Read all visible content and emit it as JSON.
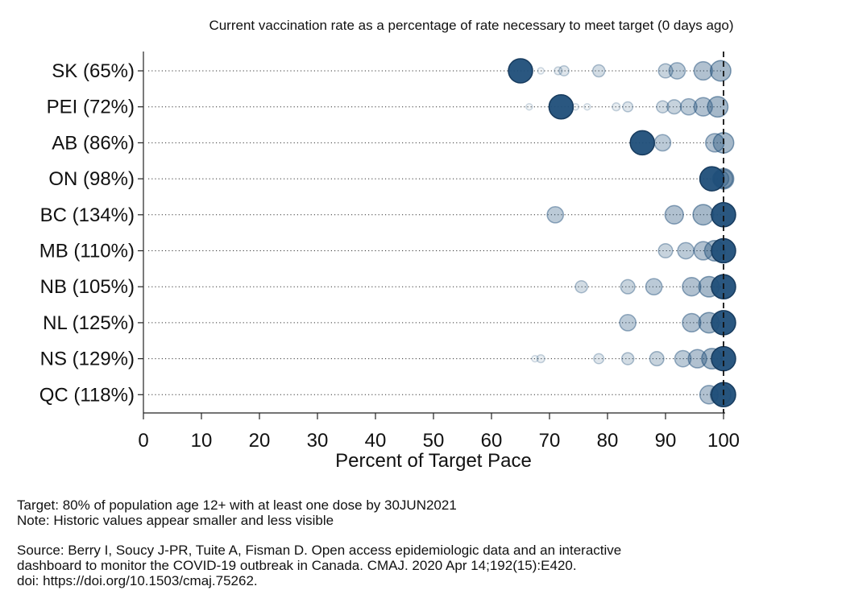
{
  "chart_data": {
    "type": "scatter",
    "title": "Current vaccination rate as a percentage of rate necessary to meet target (0 days ago)",
    "xlabel": "Percent of Target Pace",
    "ylabel": "",
    "xlim": [
      0,
      100
    ],
    "xticks": [
      0,
      10,
      20,
      30,
      40,
      50,
      60,
      70,
      80,
      90,
      100
    ],
    "reference_line_x": 100,
    "grid": false,
    "legend": "none",
    "color": "#1f4e79",
    "cap_note": "values above 100% are drawn at 100",
    "categories": [
      "SK (65%)",
      "PEI (72%)",
      "AB (86%)",
      "ON (98%)",
      "BC (134%)",
      "MB (110%)",
      "NB (105%)",
      "NL (125%)",
      "NS (129%)",
      "QC (118%)"
    ],
    "current": [
      65,
      72,
      86,
      98,
      134,
      110,
      105,
      125,
      129,
      118
    ],
    "history": [
      [
        68.5,
        71.5,
        72.5,
        78.5,
        90,
        92,
        96.5,
        99.5
      ],
      [
        66.5,
        74.5,
        76.5,
        81.5,
        83.5,
        89.5,
        91.5,
        94,
        96.5,
        99
      ],
      [
        89.5,
        98.5,
        100
      ],
      [
        99.5,
        100,
        100
      ],
      [
        71,
        91.5,
        96.5
      ],
      [
        90,
        93.5,
        96.5,
        98.5
      ],
      [
        75.5,
        83.5,
        88,
        94.5,
        97.5
      ],
      [
        83.5,
        94.5,
        97.5
      ],
      [
        67.5,
        68.5,
        78.5,
        83.5,
        88.5,
        93,
        95.5,
        98
      ],
      [
        97.5,
        99.5
      ]
    ]
  },
  "notes": {
    "target": "Target: 80% of population age 12+ with at least one dose by 30JUN2021",
    "note": "Note: Historic values appear smaller and less visible",
    "source_1": "Source: Berry I, Soucy J-PR, Tuite A, Fisman D. Open access epidemiologic data and an interactive",
    "source_2": "dashboard to monitor the COVID-19 outbreak in Canada. CMAJ. 2020 Apr 14;192(15):E420.",
    "source_3": "doi: https://doi.org/10.1503/cmaj.75262."
  }
}
